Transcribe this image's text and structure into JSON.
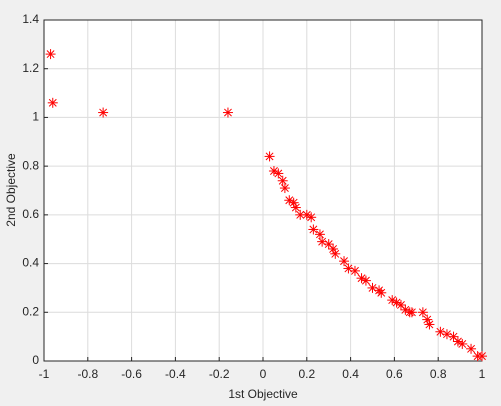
{
  "chart_data": {
    "type": "scatter",
    "xlabel": "1st Objective",
    "ylabel": "2nd Objective",
    "x": [
      -0.97,
      -0.96,
      -0.73,
      -0.16,
      0.03,
      0.05,
      0.07,
      0.09,
      0.1,
      0.12,
      0.14,
      0.15,
      0.17,
      0.2,
      0.22,
      0.23,
      0.26,
      0.27,
      0.3,
      0.32,
      0.33,
      0.37,
      0.39,
      0.42,
      0.45,
      0.47,
      0.5,
      0.53,
      0.54,
      0.59,
      0.61,
      0.63,
      0.65,
      0.67,
      0.68,
      0.73,
      0.75,
      0.76,
      0.81,
      0.84,
      0.87,
      0.89,
      0.91,
      0.95,
      0.98,
      1.0
    ],
    "values": [
      1.26,
      1.06,
      1.02,
      1.02,
      0.84,
      0.78,
      0.77,
      0.74,
      0.71,
      0.66,
      0.65,
      0.63,
      0.6,
      0.6,
      0.59,
      0.54,
      0.52,
      0.49,
      0.48,
      0.46,
      0.44,
      0.41,
      0.38,
      0.37,
      0.34,
      0.33,
      0.3,
      0.29,
      0.28,
      0.25,
      0.24,
      0.23,
      0.21,
      0.2,
      0.2,
      0.2,
      0.17,
      0.15,
      0.12,
      0.11,
      0.1,
      0.08,
      0.07,
      0.05,
      0.02,
      0.02
    ],
    "color": "#ff0000",
    "xlim": [
      -1,
      1
    ],
    "xticks": [
      -1,
      -0.8,
      -0.6,
      -0.4,
      -0.2,
      0,
      0.2,
      0.4,
      0.6,
      0.8,
      1
    ],
    "ylim": [
      0,
      1.4
    ],
    "yticks": [
      0,
      0.2,
      0.4,
      0.6,
      0.8,
      1,
      1.2,
      1.4
    ],
    "grid": true
  }
}
